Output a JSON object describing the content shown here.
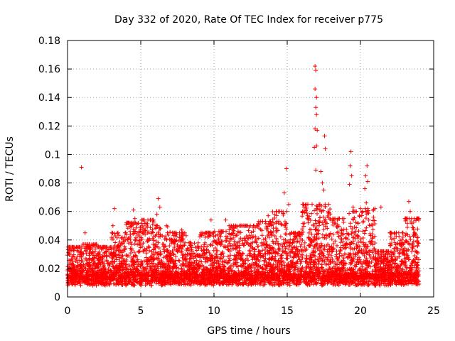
{
  "chart_data": {
    "type": "scatter",
    "title": "Day 332 of 2020, Rate Of TEC Index for receiver p775",
    "xlabel": "GPS time / hours",
    "ylabel": "ROTI / TECUs",
    "xlim": [
      0,
      25
    ],
    "ylim": [
      0,
      0.18
    ],
    "xticks": [
      0,
      5,
      10,
      15,
      20,
      25
    ],
    "xtick_labels": [
      "0",
      "5",
      "10",
      "15",
      "20",
      "25"
    ],
    "yticks": [
      0,
      0.02,
      0.04,
      0.06,
      0.08,
      0.1,
      0.12,
      0.14,
      0.16,
      0.18
    ],
    "ytick_labels": [
      "0",
      "0.02",
      "0.04",
      "0.06",
      "0.08",
      "0.1",
      "0.12",
      "0.14",
      "0.16",
      "0.18"
    ],
    "grid": true,
    "marker": "+",
    "color": "#ff0000",
    "series": [
      {
        "name": "ROTI",
        "points": [
          [
            0.95,
            0.091
          ],
          [
            1.2,
            0.045
          ],
          [
            3.2,
            0.062
          ],
          [
            3.1,
            0.05
          ],
          [
            4.5,
            0.061
          ],
          [
            4.6,
            0.055
          ],
          [
            6.2,
            0.069
          ],
          [
            6.3,
            0.063
          ],
          [
            6.1,
            0.058
          ],
          [
            9.8,
            0.054
          ],
          [
            10.8,
            0.054
          ],
          [
            12.4,
            0.049
          ],
          [
            13.7,
            0.057
          ],
          [
            14.8,
            0.073
          ],
          [
            14.95,
            0.09
          ],
          [
            15.1,
            0.065
          ],
          [
            16.9,
            0.162
          ],
          [
            16.95,
            0.159
          ],
          [
            16.9,
            0.146
          ],
          [
            17.0,
            0.14
          ],
          [
            16.95,
            0.133
          ],
          [
            17.0,
            0.128
          ],
          [
            16.9,
            0.118
          ],
          [
            17.05,
            0.117
          ],
          [
            16.85,
            0.105
          ],
          [
            17.0,
            0.106
          ],
          [
            16.95,
            0.089
          ],
          [
            17.3,
            0.088
          ],
          [
            17.55,
            0.113
          ],
          [
            17.6,
            0.104
          ],
          [
            17.4,
            0.08
          ],
          [
            17.5,
            0.075
          ],
          [
            19.35,
            0.102
          ],
          [
            19.3,
            0.092
          ],
          [
            19.4,
            0.085
          ],
          [
            19.25,
            0.079
          ],
          [
            19.5,
            0.063
          ],
          [
            20.45,
            0.092
          ],
          [
            20.35,
            0.085
          ],
          [
            20.5,
            0.081
          ],
          [
            20.3,
            0.076
          ],
          [
            20.4,
            0.066
          ],
          [
            23.3,
            0.067
          ],
          [
            23.4,
            0.06
          ],
          [
            24.0,
            0.055
          ],
          [
            21.4,
            0.063
          ],
          [
            7.8,
            0.047
          ],
          [
            8.1,
            0.043
          ]
        ],
        "bands": [
          [
            0,
            1,
            0.004,
            0.035
          ],
          [
            1,
            2,
            0.004,
            0.037
          ],
          [
            2,
            3,
            0.004,
            0.035
          ],
          [
            3,
            4,
            0.004,
            0.045
          ],
          [
            4,
            5,
            0.004,
            0.052
          ],
          [
            5,
            6,
            0.004,
            0.054
          ],
          [
            6,
            7,
            0.004,
            0.05
          ],
          [
            7,
            8,
            0.004,
            0.045
          ],
          [
            8,
            9,
            0.004,
            0.038
          ],
          [
            9,
            10,
            0.004,
            0.045
          ],
          [
            10,
            11,
            0.004,
            0.046
          ],
          [
            11,
            12,
            0.004,
            0.05
          ],
          [
            12,
            13,
            0.004,
            0.05
          ],
          [
            13,
            14,
            0.004,
            0.053
          ],
          [
            14,
            15,
            0.004,
            0.06
          ],
          [
            15,
            16,
            0.004,
            0.045
          ],
          [
            16,
            17,
            0.004,
            0.065
          ],
          [
            17,
            18,
            0.004,
            0.065
          ],
          [
            18,
            19,
            0.004,
            0.055
          ],
          [
            19,
            20,
            0.004,
            0.06
          ],
          [
            20,
            21,
            0.004,
            0.062
          ],
          [
            21,
            22,
            0.004,
            0.032
          ],
          [
            22,
            23,
            0.004,
            0.045
          ],
          [
            23,
            24,
            0.004,
            0.055
          ]
        ]
      }
    ]
  }
}
